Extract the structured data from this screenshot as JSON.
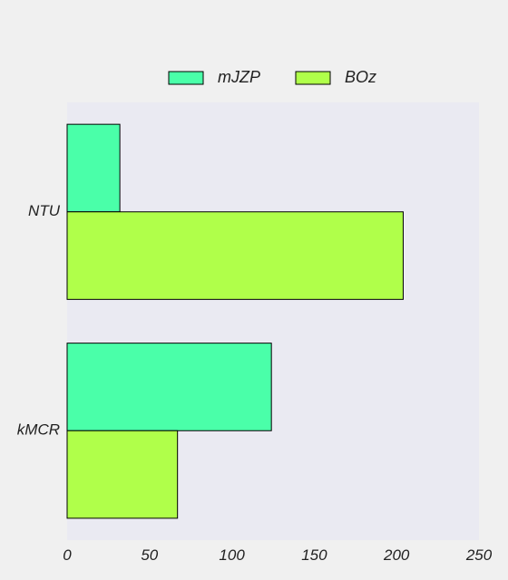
{
  "chart_data": {
    "type": "bar",
    "orientation": "horizontal",
    "categories": [
      "NTU",
      "kMCR"
    ],
    "series": [
      {
        "name": "mJZP",
        "values": [
          32,
          124
        ],
        "color": "#4affa9"
      },
      {
        "name": "BOz",
        "values": [
          204,
          67
        ],
        "color": "#b0ff4a"
      }
    ],
    "x_ticks": [
      0,
      50,
      100,
      150,
      200,
      250
    ],
    "xlim": [
      0,
      250
    ],
    "legend_position": "top-center",
    "grid": false,
    "plot_background": "#eaeaf2",
    "figure_background": "#f0f0f0"
  }
}
